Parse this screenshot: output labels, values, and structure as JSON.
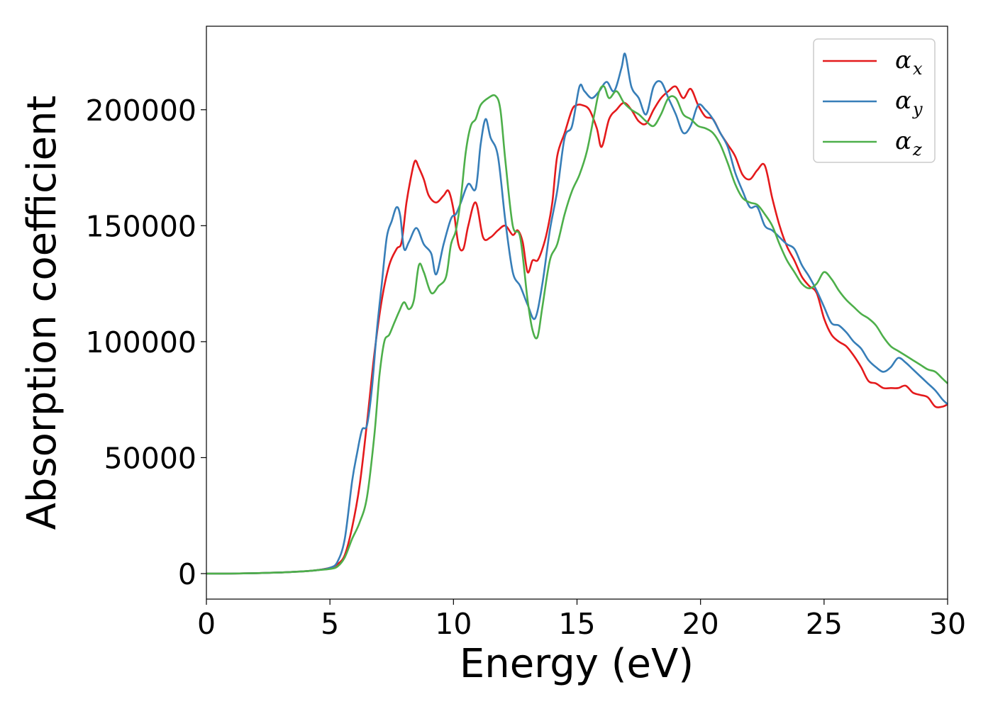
{
  "chart_data": {
    "type": "line",
    "xlabel": "Energy (eV)",
    "ylabel": "Absorption coefficient",
    "xlim": [
      0,
      30
    ],
    "ylim": [
      -11000,
      236000
    ],
    "xticks": [
      0,
      5,
      10,
      15,
      20,
      25,
      30
    ],
    "yticks": [
      0,
      50000,
      100000,
      150000,
      200000
    ],
    "grid": false,
    "legend_position": "top-right",
    "series": [
      {
        "name": "α",
        "sub": "x",
        "color": "#e41a1c",
        "x": [
          0,
          1,
          2,
          3,
          4,
          4.5,
          5,
          5.3,
          5.6,
          5.9,
          6.2,
          6.5,
          6.8,
          7.1,
          7.4,
          7.7,
          7.9,
          8.1,
          8.3,
          8.45,
          8.6,
          8.8,
          9,
          9.3,
          9.6,
          9.8,
          10,
          10.2,
          10.4,
          10.6,
          10.9,
          11.2,
          11.5,
          11.8,
          12.1,
          12.4,
          12.6,
          12.8,
          13,
          13.2,
          13.4,
          13.6,
          13.8,
          14,
          14.2,
          14.5,
          14.8,
          15,
          15.2,
          15.5,
          15.8,
          16,
          16.3,
          16.6,
          16.9,
          17.2,
          17.5,
          17.8,
          18.1,
          18.4,
          18.7,
          19,
          19.3,
          19.6,
          19.9,
          20.2,
          20.5,
          20.8,
          21.1,
          21.4,
          21.7,
          22,
          22.3,
          22.6,
          22.9,
          23.2,
          23.5,
          23.8,
          24.1,
          24.4,
          24.7,
          25,
          25.3,
          25.6,
          25.9,
          26.2,
          26.5,
          26.8,
          27.1,
          27.4,
          27.7,
          28,
          28.3,
          28.6,
          28.9,
          29.2,
          29.5,
          29.8,
          30
        ],
        "y": [
          0,
          0,
          200,
          500,
          1000,
          1500,
          2500,
          4000,
          8000,
          20000,
          38000,
          65000,
          95000,
          118000,
          133000,
          140000,
          143000,
          160000,
          172000,
          178000,
          175000,
          170000,
          163000,
          160000,
          163000,
          165000,
          157000,
          142000,
          140000,
          150000,
          160000,
          145000,
          145000,
          148000,
          150000,
          146000,
          148000,
          143000,
          130000,
          135000,
          135000,
          140000,
          148000,
          160000,
          180000,
          190000,
          200000,
          202000,
          202000,
          200000,
          192000,
          184000,
          196000,
          200000,
          203000,
          200000,
          195000,
          194000,
          200000,
          205000,
          208000,
          210000,
          205000,
          209000,
          202000,
          197000,
          196000,
          190000,
          185000,
          180000,
          172000,
          170000,
          174000,
          176000,
          162000,
          150000,
          141000,
          135000,
          128000,
          124000,
          121000,
          110000,
          103000,
          100000,
          98000,
          94000,
          89000,
          83000,
          82000,
          80000,
          80000,
          80000,
          81000,
          78000,
          77000,
          76000,
          72000,
          72000,
          73000
        ]
      },
      {
        "name": "α",
        "sub": "y",
        "color": "#377eb8",
        "x": [
          0,
          1,
          2,
          3,
          4,
          4.5,
          5,
          5.3,
          5.6,
          5.9,
          6.1,
          6.3,
          6.5,
          6.7,
          6.9,
          7.1,
          7.3,
          7.5,
          7.7,
          7.85,
          8,
          8.2,
          8.5,
          8.8,
          9.1,
          9.3,
          9.6,
          9.9,
          10.1,
          10.3,
          10.6,
          10.9,
          11.1,
          11.3,
          11.5,
          11.8,
          12.1,
          12.4,
          12.7,
          13,
          13.3,
          13.6,
          13.9,
          14.2,
          14.5,
          14.8,
          15.1,
          15.3,
          15.6,
          15.9,
          16.2,
          16.5,
          16.8,
          16.95,
          17.2,
          17.5,
          17.8,
          18.1,
          18.4,
          18.7,
          19,
          19.3,
          19.6,
          19.9,
          20.2,
          20.5,
          20.8,
          21.1,
          21.4,
          21.7,
          22,
          22.3,
          22.6,
          22.9,
          23.2,
          23.5,
          23.8,
          24.1,
          24.4,
          24.7,
          25,
          25.3,
          25.6,
          25.9,
          26.2,
          26.5,
          26.8,
          27.1,
          27.4,
          27.7,
          28,
          28.3,
          28.6,
          28.9,
          29.2,
          29.5,
          29.8,
          30
        ],
        "y": [
          0,
          0,
          200,
          500,
          1000,
          1500,
          2500,
          5000,
          15000,
          40000,
          52000,
          62000,
          64000,
          80000,
          105000,
          125000,
          145000,
          152000,
          158000,
          154000,
          140000,
          143000,
          149000,
          142000,
          138000,
          129000,
          142000,
          153000,
          155000,
          160000,
          168000,
          166000,
          185000,
          196000,
          188000,
          180000,
          152000,
          130000,
          124000,
          116000,
          110000,
          125000,
          148000,
          165000,
          188000,
          193000,
          210000,
          208000,
          205000,
          208000,
          212000,
          208000,
          218000,
          224000,
          210000,
          205000,
          198000,
          210000,
          212000,
          205000,
          198000,
          190000,
          193000,
          202000,
          200000,
          196000,
          190000,
          184000,
          173000,
          165000,
          158000,
          158000,
          150000,
          148000,
          145000,
          142000,
          140000,
          133000,
          128000,
          122000,
          115000,
          108000,
          107000,
          104000,
          100000,
          97000,
          92000,
          89000,
          87000,
          89000,
          93000,
          91000,
          88000,
          85000,
          82000,
          79000,
          75000,
          73000
        ]
      },
      {
        "name": "α",
        "sub": "z",
        "color": "#4daf4a",
        "x": [
          0,
          1,
          2,
          3,
          4,
          4.5,
          5,
          5.3,
          5.6,
          5.9,
          6.2,
          6.5,
          6.8,
          7,
          7.2,
          7.4,
          7.6,
          7.8,
          8,
          8.2,
          8.4,
          8.6,
          8.8,
          9.1,
          9.4,
          9.7,
          9.9,
          10.1,
          10.3,
          10.5,
          10.7,
          10.9,
          11.1,
          11.4,
          11.7,
          11.9,
          12.1,
          12.4,
          12.7,
          13,
          13.2,
          13.4,
          13.6,
          13.9,
          14.2,
          14.5,
          14.8,
          15.1,
          15.4,
          15.7,
          15.9,
          16.1,
          16.3,
          16.6,
          16.9,
          17.2,
          17.5,
          17.8,
          18.1,
          18.4,
          18.7,
          19,
          19.3,
          19.6,
          19.9,
          20.2,
          20.5,
          20.8,
          21.1,
          21.4,
          21.7,
          22,
          22.3,
          22.6,
          22.9,
          23.2,
          23.5,
          23.8,
          24.1,
          24.4,
          24.7,
          25,
          25.3,
          25.6,
          25.9,
          26.2,
          26.5,
          26.8,
          27.1,
          27.4,
          27.7,
          28,
          28.3,
          28.6,
          28.9,
          29.2,
          29.5,
          29.8,
          30
        ],
        "y": [
          0,
          0,
          200,
          500,
          1000,
          1500,
          2000,
          3000,
          7000,
          15000,
          22000,
          33000,
          60000,
          85000,
          100000,
          103000,
          108000,
          113000,
          117000,
          114000,
          118000,
          133000,
          130000,
          121000,
          124000,
          128000,
          142000,
          148000,
          162000,
          182000,
          193000,
          196000,
          202000,
          205000,
          206000,
          200000,
          178000,
          150000,
          145000,
          118000,
          105000,
          102000,
          115000,
          135000,
          142000,
          155000,
          165000,
          172000,
          182000,
          198000,
          208000,
          210000,
          205000,
          208000,
          203000,
          200000,
          198000,
          195000,
          193000,
          198000,
          205000,
          205000,
          198000,
          196000,
          193000,
          192000,
          190000,
          185000,
          177000,
          168000,
          162000,
          160000,
          159000,
          155000,
          150000,
          142000,
          135000,
          130000,
          125000,
          123000,
          125000,
          130000,
          127000,
          122000,
          118000,
          115000,
          112000,
          110000,
          107000,
          102000,
          98000,
          96000,
          94000,
          92000,
          90000,
          88000,
          87000,
          84000,
          82000
        ]
      }
    ]
  }
}
